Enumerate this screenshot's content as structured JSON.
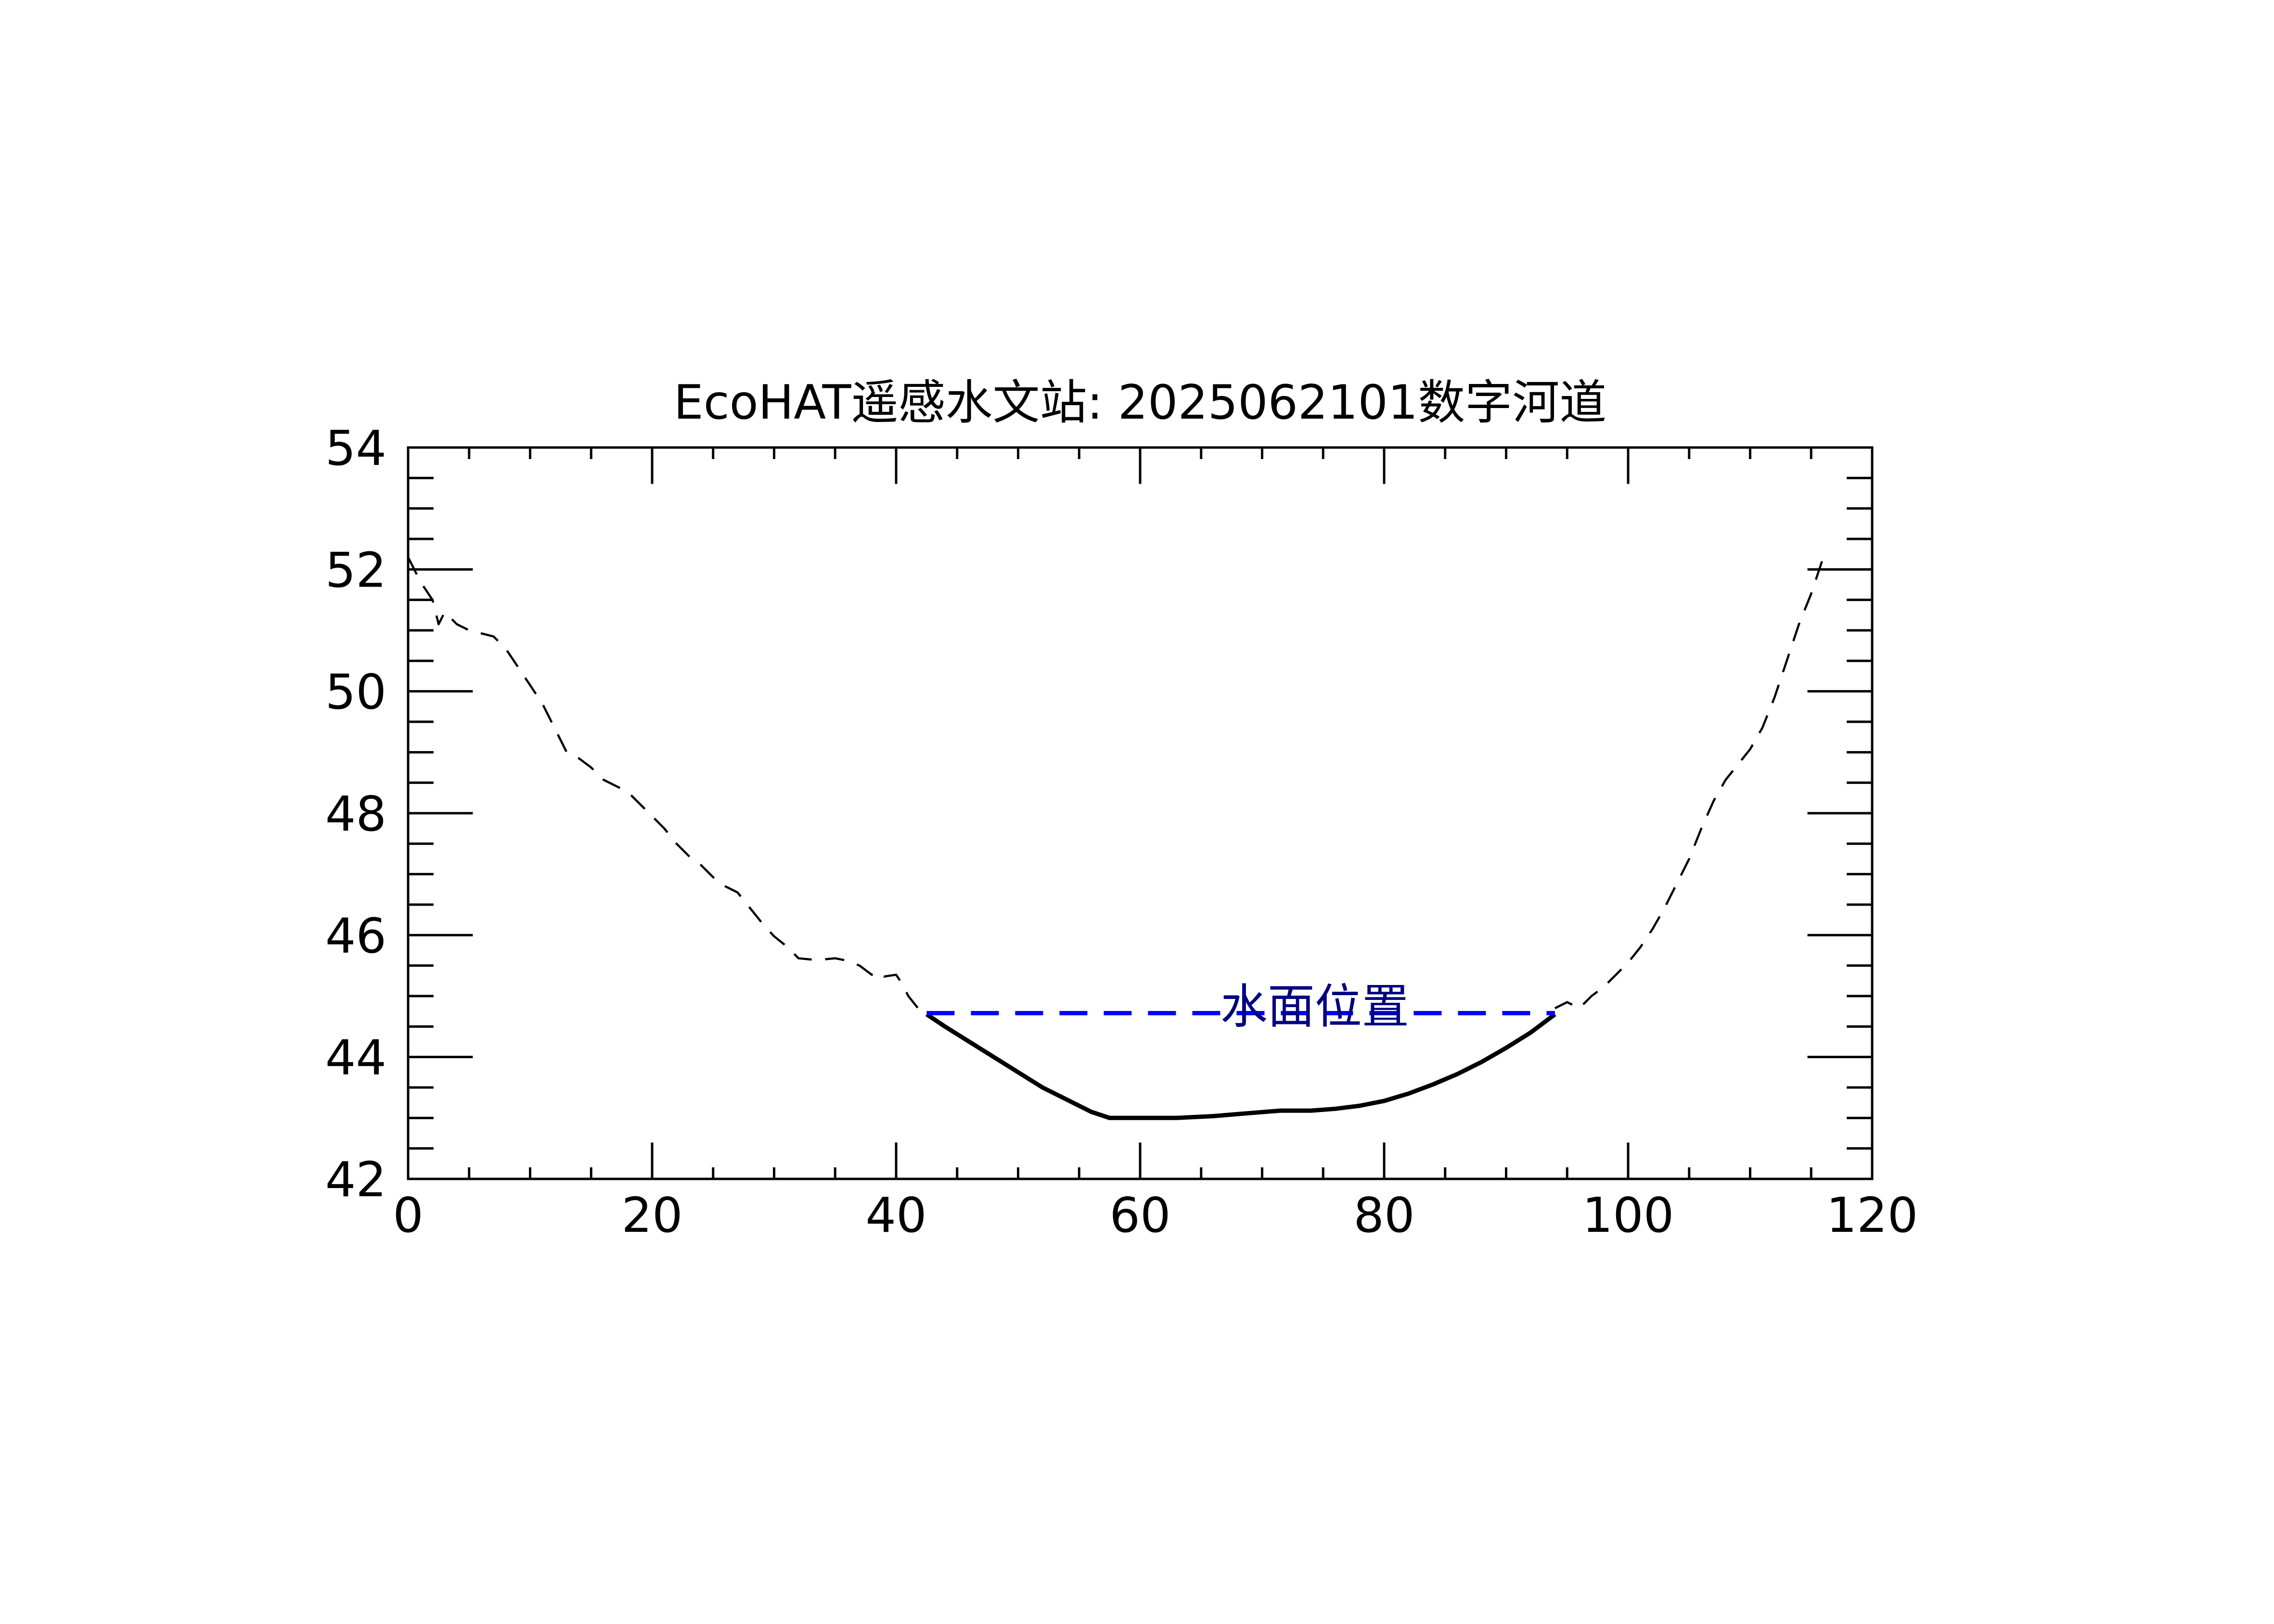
{
  "chart_data": {
    "type": "line",
    "title": "EcoHAT遥感水文站: 2025062101数字河道",
    "xlabel": "",
    "ylabel": "",
    "xlim": [
      0,
      120
    ],
    "ylim": [
      42,
      54
    ],
    "x_ticks": [
      0,
      20,
      40,
      60,
      80,
      100,
      120
    ],
    "x_tick_labels": [
      "0",
      "20",
      "40",
      "60",
      "80",
      "100",
      "120"
    ],
    "x_minor_step": 5,
    "y_ticks": [
      42,
      44,
      46,
      48,
      50,
      52,
      54
    ],
    "y_tick_labels": [
      "42",
      "44",
      "46",
      "48",
      "50",
      "52",
      "54"
    ],
    "y_minor_step": 0.5,
    "grid": false,
    "colors": {
      "axis": "#000000",
      "ground": "#000000",
      "riverbed": "#000000",
      "water": "#0000ff",
      "annotation": "#000080"
    },
    "series": [
      {
        "name": "ground-profile-left",
        "style": "dashed",
        "x": [
          0,
          1,
          2,
          2.5,
          3,
          4,
          5,
          6,
          7,
          8,
          9,
          10,
          11,
          12,
          13,
          14,
          15,
          16,
          17,
          18,
          19,
          20,
          21,
          22,
          23,
          24,
          25,
          26,
          27,
          28,
          29,
          30,
          31,
          32,
          33,
          34,
          35,
          36,
          37,
          38,
          38.5,
          39,
          40,
          40.5,
          41,
          42
        ],
        "y": [
          52.2,
          51.8,
          51.5,
          51.1,
          51.3,
          51.1,
          51.0,
          50.95,
          50.9,
          50.7,
          50.4,
          50.1,
          49.8,
          49.4,
          49.0,
          48.9,
          48.75,
          48.55,
          48.45,
          48.35,
          48.15,
          47.95,
          47.75,
          47.5,
          47.3,
          47.15,
          46.95,
          46.8,
          46.7,
          46.45,
          46.2,
          45.98,
          45.82,
          45.62,
          45.6,
          45.6,
          45.62,
          45.58,
          45.5,
          45.35,
          45.4,
          45.32,
          45.35,
          45.2,
          45.0,
          44.75
        ]
      },
      {
        "name": "riverbed",
        "style": "solid",
        "x": [
          42.5,
          44,
          46,
          48,
          50,
          52,
          54,
          56,
          57.5,
          60,
          63,
          66,
          69,
          71.5,
          74,
          76,
          78,
          80,
          82,
          84,
          86,
          88,
          90,
          92,
          94
        ],
        "y": [
          44.7,
          44.5,
          44.25,
          44.0,
          43.75,
          43.5,
          43.3,
          43.1,
          43.0,
          43.0,
          43.0,
          43.03,
          43.08,
          43.12,
          43.12,
          43.15,
          43.2,
          43.28,
          43.4,
          43.55,
          43.72,
          43.92,
          44.15,
          44.4,
          44.7
        ]
      },
      {
        "name": "ground-profile-right",
        "style": "dashed",
        "x": [
          94,
          95,
          96,
          97,
          98,
          99,
          100,
          101,
          102,
          103,
          104,
          105,
          106,
          107,
          108,
          109,
          110,
          111,
          112,
          113,
          114,
          115,
          116
        ],
        "y": [
          44.8,
          44.9,
          44.8,
          45.0,
          45.15,
          45.35,
          45.55,
          45.8,
          46.1,
          46.45,
          46.85,
          47.25,
          47.75,
          48.2,
          48.55,
          48.8,
          49.05,
          49.4,
          49.9,
          50.5,
          51.1,
          51.6,
          52.2
        ]
      },
      {
        "name": "water-surface",
        "style": "dashed",
        "x": [
          42.5,
          94
        ],
        "y": [
          44.72,
          44.72
        ]
      }
    ],
    "annotations": [
      {
        "text": "水面位置",
        "x": 68,
        "y": 44.72
      }
    ]
  }
}
